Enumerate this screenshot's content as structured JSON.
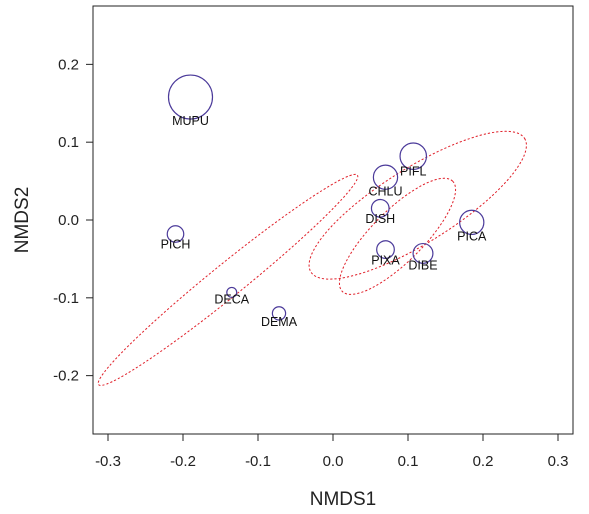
{
  "chart_data": {
    "type": "scatter",
    "title": "",
    "xlabel": "NMDS1",
    "ylabel": "NMDS2",
    "xlim": [
      -0.32,
      0.32
    ],
    "ylim": [
      -0.275,
      0.275
    ],
    "xticks": [
      -0.3,
      -0.2,
      -0.1,
      0.0,
      0.1,
      0.2,
      0.3
    ],
    "xtick_labels": [
      "-0.3",
      "-0.2",
      "-0.1",
      "0.0",
      "0.1",
      "0.2",
      "0.3"
    ],
    "yticks": [
      -0.2,
      -0.1,
      0.0,
      0.1,
      0.2
    ],
    "ytick_labels": [
      "-0.2",
      "-0.1",
      "0.0",
      "0.1",
      "0.2"
    ],
    "grid": false,
    "point_color": "#4b3a9a",
    "ellipse_color": "#e0202a",
    "points": [
      {
        "label": "MUPU",
        "x": -0.19,
        "y": 0.158,
        "size": 2.0
      },
      {
        "label": "PIFL",
        "x": 0.107,
        "y": 0.082,
        "size": 1.2
      },
      {
        "label": "CHLU",
        "x": 0.07,
        "y": 0.055,
        "size": 1.1
      },
      {
        "label": "DISH",
        "x": 0.063,
        "y": 0.015,
        "size": 0.8
      },
      {
        "label": "PICA",
        "x": 0.185,
        "y": -0.003,
        "size": 1.1
      },
      {
        "label": "PIXA",
        "x": 0.07,
        "y": -0.038,
        "size": 0.8
      },
      {
        "label": "DIBE",
        "x": 0.12,
        "y": -0.043,
        "size": 0.9
      },
      {
        "label": "PICH",
        "x": -0.21,
        "y": -0.018,
        "size": 0.75
      },
      {
        "label": "DECA",
        "x": -0.135,
        "y": -0.093,
        "size": 0.45
      },
      {
        "label": "DEMA",
        "x": -0.072,
        "y": -0.12,
        "size": 0.6
      }
    ],
    "ellipses": [
      {
        "group": "upper-right",
        "cx": 0.113,
        "cy": 0.019,
        "rx": 0.168,
        "ry": 0.048,
        "angle_deg": -32
      },
      {
        "group": "middle",
        "cx": 0.086,
        "cy": -0.021,
        "rx": 0.104,
        "ry": 0.033,
        "angle_deg": -45
      },
      {
        "group": "left",
        "cx": -0.14,
        "cy": -0.077,
        "rx": 0.222,
        "ry": 0.021,
        "angle_deg": -39
      }
    ]
  }
}
